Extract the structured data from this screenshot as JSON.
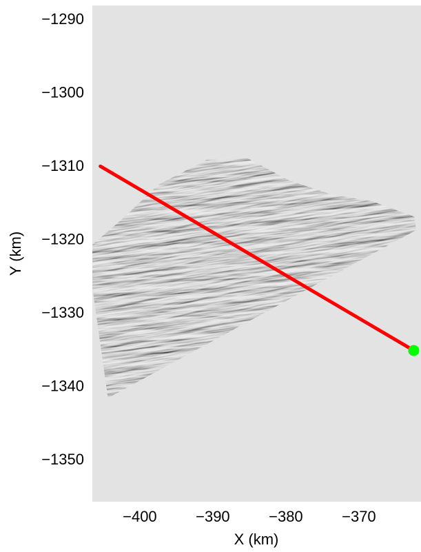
{
  "chart_data": {
    "type": "line",
    "title": "",
    "xlabel": "X (km)",
    "ylabel": "Y (km)",
    "xlim": [
      -406.5,
      -361.5
    ],
    "ylim": [
      -1355.8,
      -1288.2
    ],
    "x_ticks": [
      -400,
      -390,
      -380,
      -370
    ],
    "y_ticks": [
      -1290,
      -1300,
      -1310,
      -1320,
      -1330,
      -1340,
      -1350
    ],
    "x_tick_labels": [
      "−400",
      "−390",
      "−380",
      "−370"
    ],
    "y_tick_labels": [
      "−1290",
      "−1300",
      "−1310",
      "−1320",
      "−1330",
      "−1340",
      "−1350"
    ],
    "grid": false,
    "background": "grayscale shaded-relief satellite image with crevasse field",
    "series": [
      {
        "type": "line",
        "color": "#ff0000",
        "x": [
          -405.4,
          -362.5
        ],
        "y": [
          -1310.1,
          -1335.2
        ]
      },
      {
        "type": "point",
        "color": "#00ff00",
        "x": [
          -362.5
        ],
        "y": [
          -1335.2
        ]
      }
    ]
  },
  "colors": {
    "image_background": "#ebebeb",
    "profile_line": "#ff0000",
    "end_marker": "#00ff00"
  }
}
